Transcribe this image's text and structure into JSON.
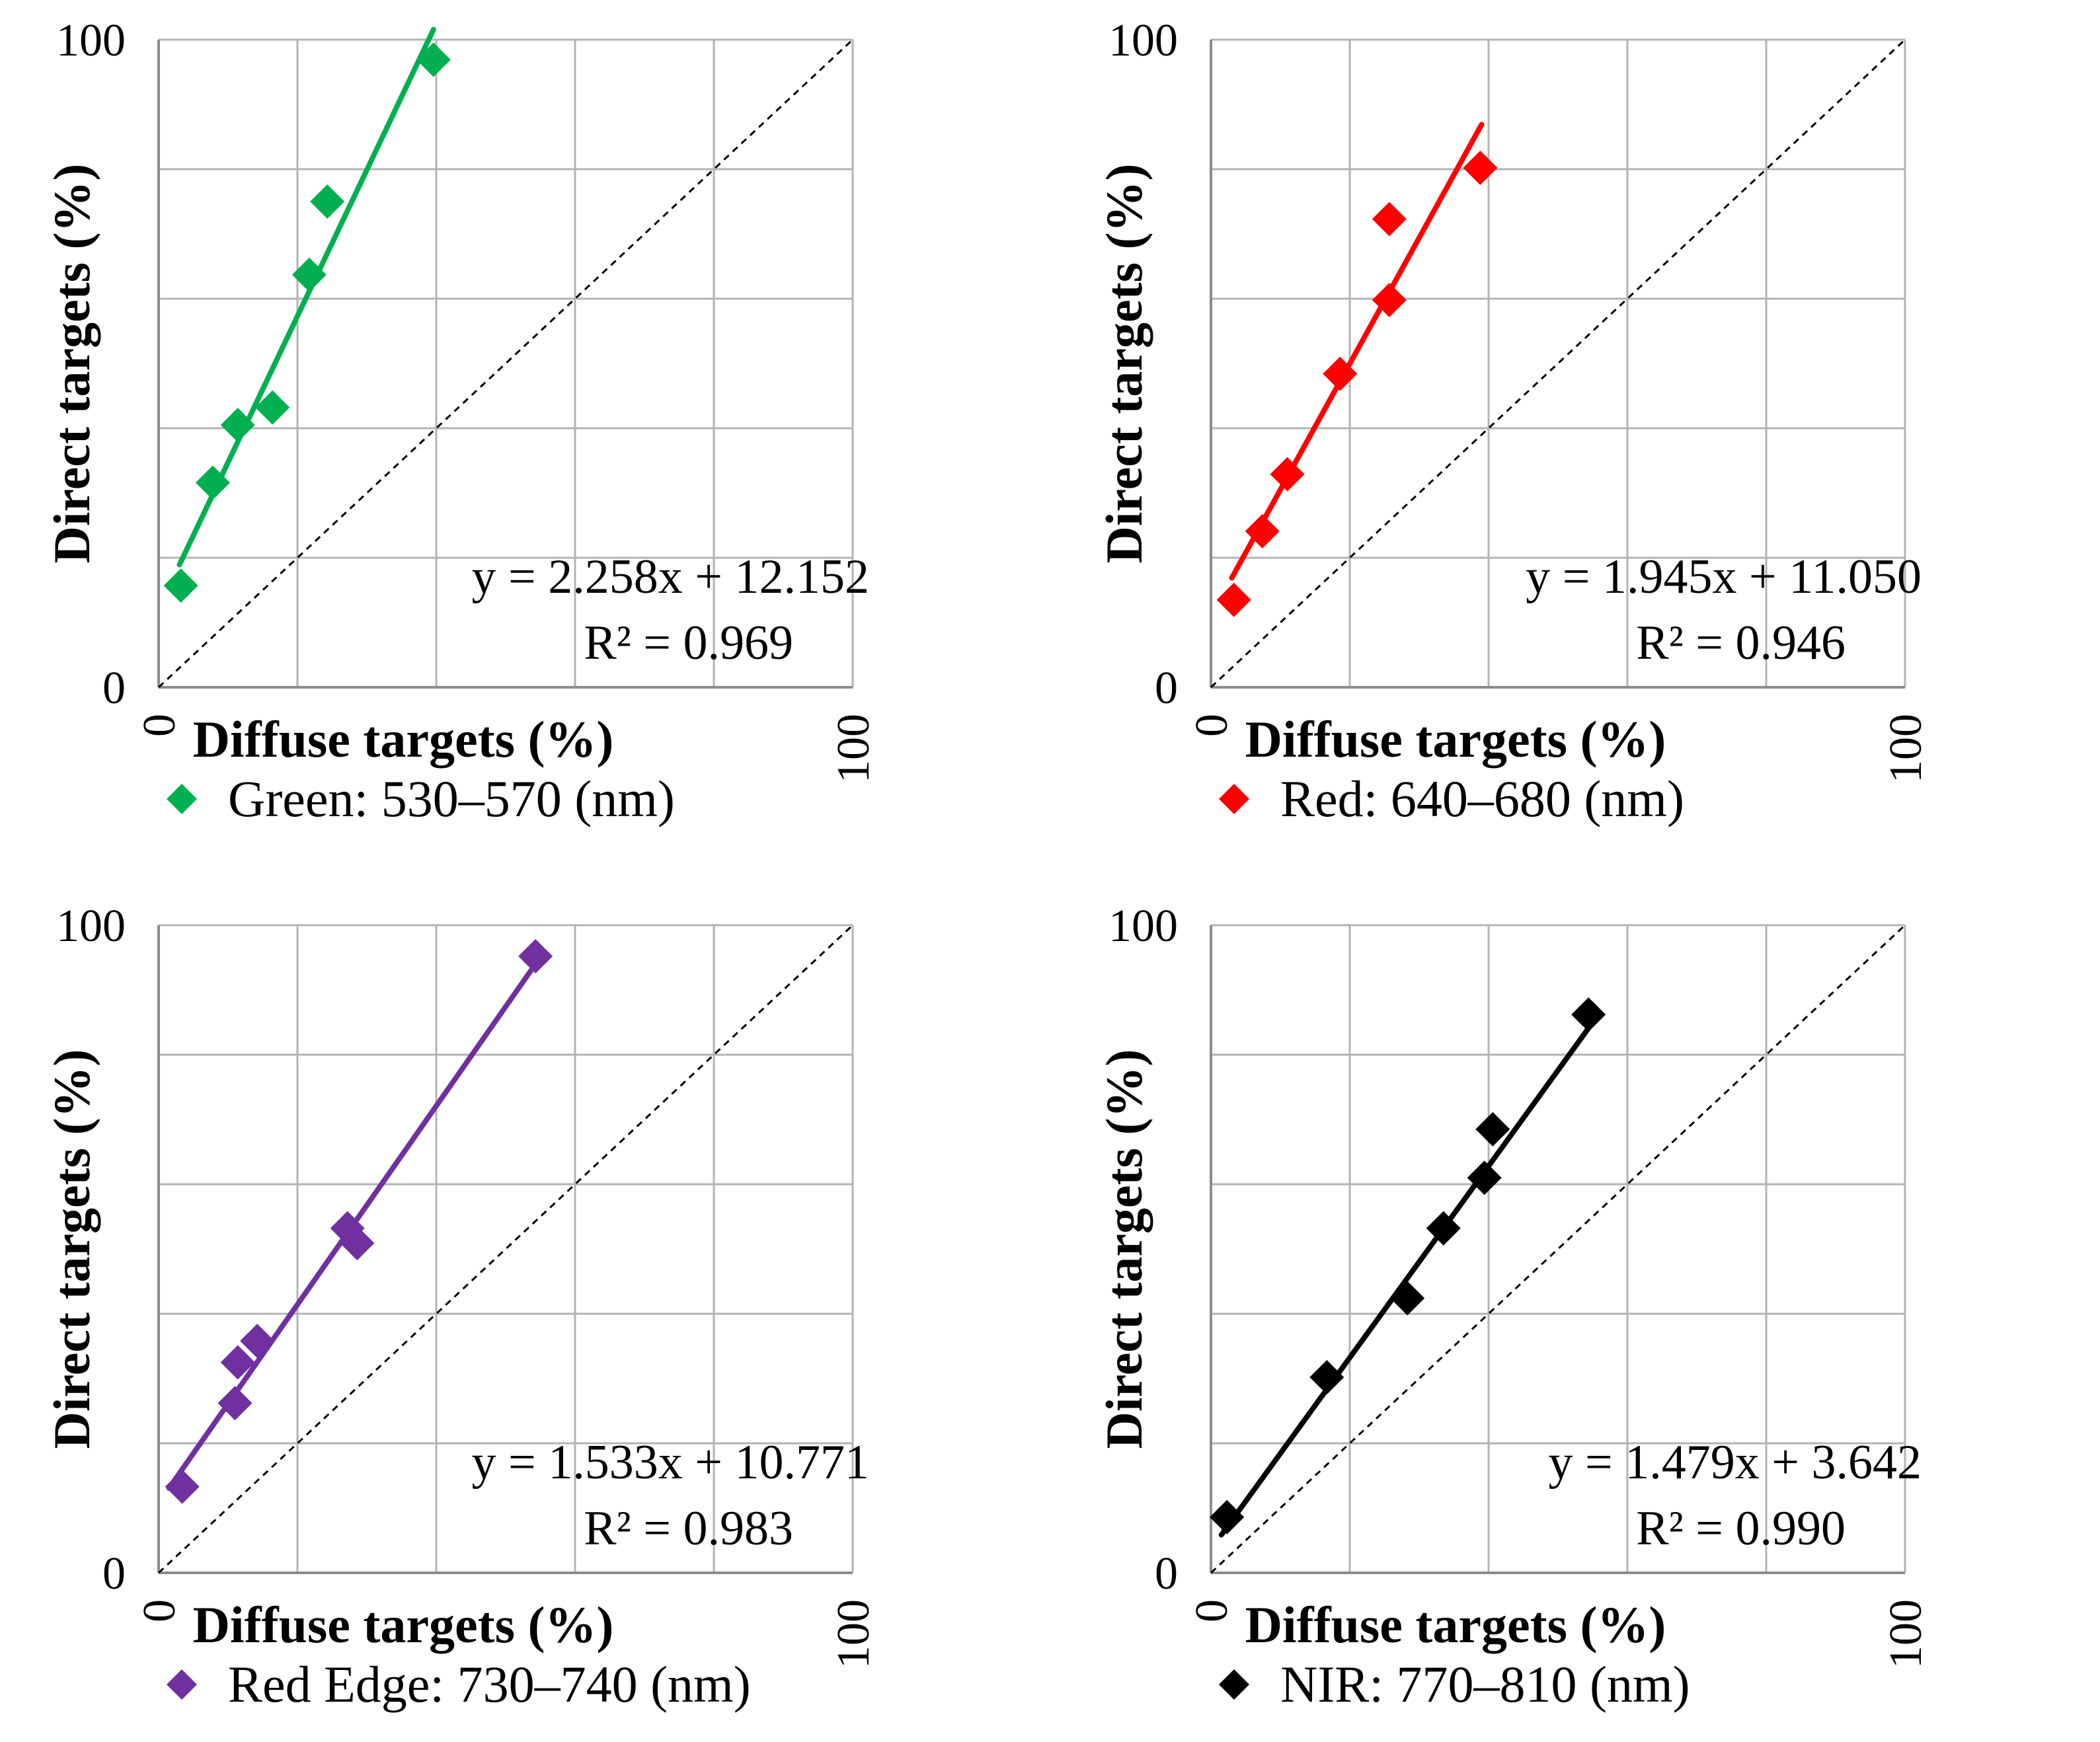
{
  "figure": {
    "panels": [
      {
        "legend_label": "Green: 530–570 (nm)",
        "color": "#00b050",
        "equation": "y = 2.258x + 12.152",
        "r2_label": "R² = 0.969"
      },
      {
        "legend_label": "Red: 640–680 (nm)",
        "color": "#ff0000",
        "equation": "y = 1.945x + 11.050",
        "r2_label": "R² = 0.946"
      },
      {
        "legend_label": "Red Edge: 730–740 (nm)",
        "color": "#7030a0",
        "equation": "y = 1.533x + 10.771",
        "r2_label": "R² = 0.983"
      },
      {
        "legend_label": "NIR: 770–810 (nm)",
        "color": "#000000",
        "equation": "y = 1.479x + 3.642",
        "r2_label": "R² = 0.990"
      }
    ]
  },
  "chart_data": [
    {
      "type": "scatter",
      "title": "",
      "xlabel": "Diffuse targets (%)",
      "ylabel": "Direct targets (%)",
      "xlim": [
        0,
        100
      ],
      "ylim": [
        0,
        100
      ],
      "x_ticks": [
        "0",
        "100"
      ],
      "y_ticks": [
        "0",
        "100"
      ],
      "grid": true,
      "series": [
        {
          "name": "Green: 530–570 (nm)",
          "x": [
            3.2,
            7.8,
            11.4,
            16.4,
            21.7,
            24.3,
            39.6
          ],
          "y": [
            15.7,
            31.6,
            40.5,
            43.2,
            63.7,
            75.0,
            96.9
          ]
        }
      ],
      "trendline": {
        "slope": 2.258,
        "intercept": 12.152,
        "r2": 0.969,
        "x_range": [
          3.0,
          39.6
        ]
      },
      "reference_line": "y = x"
    },
    {
      "type": "scatter",
      "title": "",
      "xlabel": "Diffuse targets (%)",
      "ylabel": "Direct targets (%)",
      "xlim": [
        0,
        100
      ],
      "ylim": [
        0,
        100
      ],
      "x_ticks": [
        "0",
        "100"
      ],
      "y_ticks": [
        "0",
        "100"
      ],
      "grid": true,
      "series": [
        {
          "name": "Red: 640–680 (nm)",
          "x": [
            3.3,
            7.4,
            11.0,
            18.6,
            25.7,
            25.7,
            38.8
          ],
          "y": [
            13.5,
            24.1,
            32.9,
            48.4,
            59.8,
            72.3,
            80.2
          ]
        }
      ],
      "trendline": {
        "slope": 1.945,
        "intercept": 11.05,
        "r2": 0.946,
        "x_range": [
          3.0,
          39.0
        ]
      },
      "reference_line": "y = x"
    },
    {
      "type": "scatter",
      "title": "",
      "xlabel": "Diffuse targets (%)",
      "ylabel": "Direct targets (%)",
      "xlim": [
        0,
        100
      ],
      "ylim": [
        0,
        100
      ],
      "x_ticks": [
        "0",
        "100"
      ],
      "y_ticks": [
        "0",
        "100"
      ],
      "grid": true,
      "series": [
        {
          "name": "Red Edge: 730–740 (nm)",
          "x": [
            3.4,
            11.0,
            11.4,
            14.2,
            27.2,
            28.6,
            54.3
          ],
          "y": [
            13.3,
            26.2,
            32.5,
            35.8,
            53.2,
            50.9,
            95.2
          ]
        }
      ],
      "trendline": {
        "slope": 1.533,
        "intercept": 10.771,
        "r2": 0.983,
        "x_range": [
          1.5,
          54.3
        ]
      },
      "reference_line": "y = x"
    },
    {
      "type": "scatter",
      "title": "",
      "xlabel": "Diffuse targets (%)",
      "ylabel": "Direct targets (%)",
      "xlim": [
        0,
        100
      ],
      "ylim": [
        0,
        100
      ],
      "x_ticks": [
        "0",
        "100"
      ],
      "y_ticks": [
        "0",
        "100"
      ],
      "grid": true,
      "series": [
        {
          "name": "NIR: 770–810 (nm)",
          "x": [
            2.3,
            16.7,
            28.3,
            33.5,
            39.4,
            40.6,
            54.4
          ],
          "y": [
            8.6,
            30.2,
            42.4,
            53.2,
            61.0,
            68.5,
            86.2
          ]
        }
      ],
      "trendline": {
        "slope": 1.479,
        "intercept": 3.642,
        "r2": 0.99,
        "x_range": [
          1.5,
          55.0
        ]
      },
      "reference_line": "y = x"
    }
  ]
}
